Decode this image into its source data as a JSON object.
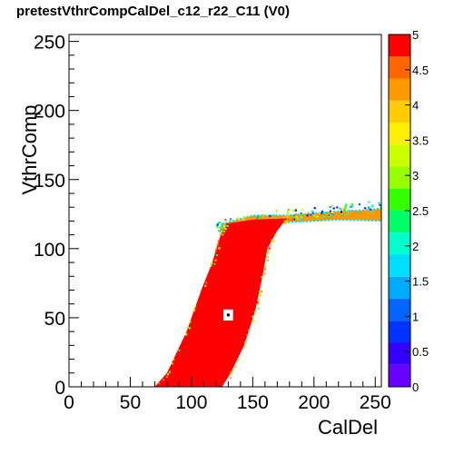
{
  "chart_data": {
    "type": "heatmap",
    "title": "pretestVthrCompCalDel_c12_r22_C11 (V0)",
    "xlabel": "CalDel",
    "ylabel": "VthrComp",
    "xlim": [
      0,
      255
    ],
    "ylim": [
      0,
      255
    ],
    "zlim": [
      0,
      5
    ],
    "x_ticks": [
      0,
      50,
      100,
      150,
      200,
      250
    ],
    "y_ticks": [
      0,
      50,
      100,
      150,
      200,
      250
    ],
    "z_ticks": [
      0,
      0.5,
      1,
      1.5,
      2,
      2.5,
      3,
      3.5,
      4,
      4.5,
      5
    ],
    "grid": false,
    "saturated_region": {
      "value": 5,
      "left_edge": [
        [
          70,
          0
        ],
        [
          80,
          10
        ],
        [
          96,
          40
        ],
        [
          108,
          70
        ],
        [
          117,
          90
        ],
        [
          122,
          105
        ],
        [
          125,
          113
        ],
        [
          128,
          118
        ]
      ],
      "top_edge": [
        [
          128,
          118
        ],
        [
          150,
          121
        ],
        [
          178,
          122
        ]
      ],
      "right_edge": [
        [
          178,
          122
        ],
        [
          170,
          113
        ],
        [
          162,
          100
        ],
        [
          158,
          80
        ],
        [
          152,
          55
        ],
        [
          143,
          30
        ],
        [
          132,
          10
        ],
        [
          125,
          0
        ]
      ]
    },
    "fringe_region": {
      "value_range": [
        0.5,
        4.5
      ],
      "points": [
        [
          125,
          118
        ],
        [
          150,
          124
        ],
        [
          178,
          124
        ],
        [
          220,
          127
        ],
        [
          245,
          128
        ],
        [
          262,
          130
        ],
        [
          262,
          120
        ],
        [
          220,
          121
        ],
        [
          178,
          119
        ],
        [
          150,
          116
        ],
        [
          122,
          112
        ]
      ]
    },
    "empty_cell": {
      "x": 130,
      "y": 52,
      "size": 8
    },
    "marked_cell": {
      "x": 130,
      "y": 52
    }
  }
}
